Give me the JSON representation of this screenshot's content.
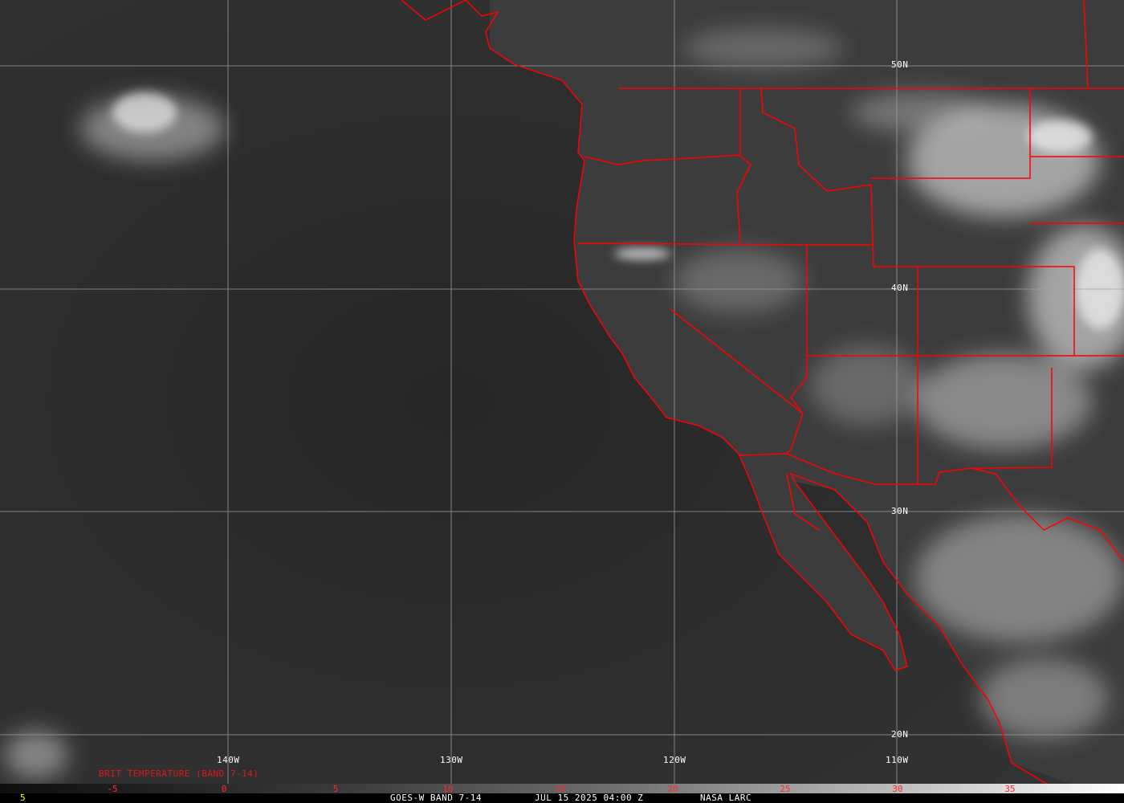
{
  "map": {
    "satellite": "GOES-W",
    "band": "BAND 7-14",
    "datetime": "JUL 15 2025 04:00 Z",
    "source": "NASA LARC",
    "longitude_labels": [
      "140W",
      "130W",
      "120W",
      "110W"
    ],
    "latitude_labels": [
      "50N",
      "40N",
      "30N",
      "20N"
    ],
    "border_color": "#ff0000",
    "grid_color": "#a0a0a0"
  },
  "legend": {
    "title": "BRIT TEMPERATURE (BAND 7-14)",
    "ticks": [
      "-5",
      "0",
      "5",
      "10",
      "15",
      "20",
      "25",
      "30",
      "35"
    ],
    "corner_value": "5"
  },
  "footer": {
    "text1": "GOES-W BAND 7-14",
    "text2": "JUL 15 2025 04:00 Z",
    "text3": "NASA LARC"
  }
}
